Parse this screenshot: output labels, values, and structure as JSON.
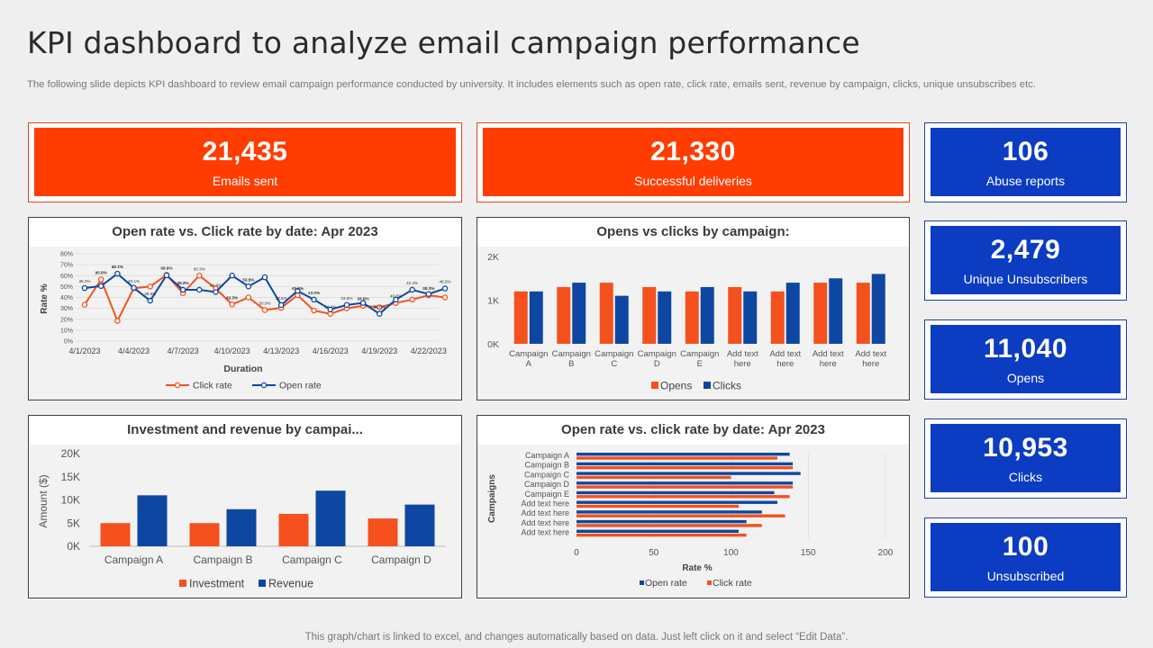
{
  "page": {
    "title": "KPI dashboard to analyze email campaign performance",
    "subtitle": "The following slide depicts KPI dashboard to review email campaign performance conducted by university. It includes elements such as open rate, click rate,  emails sent, revenue by campaign, clicks, unique unsubscribes etc.",
    "footer": "This graph/chart is linked to excel,  and changes automatically based on data. Just left click on it and select “Edit Data”."
  },
  "kpis": {
    "emails_sent": {
      "value": "21,435",
      "label": "Emails sent"
    },
    "successful_deliveries": {
      "value": "21,330",
      "label": "Successful deliveries"
    },
    "abuse_reports": {
      "value": "106",
      "label": "Abuse reports"
    },
    "unique_unsubscribers": {
      "value": "2,479",
      "label": "Unique Unsubscribers"
    },
    "opens": {
      "value": "11,040",
      "label": "Opens"
    },
    "clicks": {
      "value": "10,953",
      "label": "Clicks"
    },
    "unsubscribed": {
      "value": "100",
      "label": "Unsubscribed"
    }
  },
  "colors": {
    "orange": "#ff3d00",
    "blue": "#0b3cc1",
    "red_series": "#f4511e",
    "blue_series": "#0d47a1"
  },
  "chart_data": [
    {
      "type": "line",
      "title": "Open rate vs. Click rate by date: Apr 2023",
      "xlabel": "Duration",
      "ylabel": "Rate %",
      "ylim": [
        0,
        80
      ],
      "yticks": [
        "0%",
        "10%",
        "20%",
        "30%",
        "40%",
        "50%",
        "60%",
        "70%",
        "80%"
      ],
      "x": [
        "4/1/2023",
        "4/2/2023",
        "4/3/2023",
        "4/4/2023",
        "4/5/2023",
        "4/6/2023",
        "4/7/2023",
        "4/8/2023",
        "4/9/2023",
        "4/10/2023",
        "4/11/2023",
        "4/12/2023",
        "4/13/2023",
        "4/14/2023",
        "4/15/2023",
        "4/16/2023",
        "4/17/2023",
        "4/18/2023",
        "4/19/2023",
        "4/20/2023",
        "4/21/2023",
        "4/22/2023",
        "4/23/2023"
      ],
      "xtick_labels": [
        "4/1/2023",
        "4/4/2023",
        "4/7/2023",
        "4/10/2023",
        "4/13/2023",
        "4/16/2023",
        "4/19/2023",
        "4/22/2023"
      ],
      "series": [
        {
          "name": "Click rate",
          "values": [
            33.4,
            56.5,
            18.5,
            48.5,
            50.0,
            60.7,
            44.0,
            60.0,
            48.2,
            33.6,
            40.0,
            28.5,
            30.5,
            42.1,
            28.0,
            25.0,
            30.0,
            32.4,
            31.0,
            35.0,
            38.0,
            42.0,
            40.0
          ]
        },
        {
          "name": "Open rate",
          "values": [
            48.6,
            50.5,
            61.8,
            48.8,
            37.0,
            60.3,
            47.0,
            47.0,
            45.0,
            60.1,
            50.1,
            58.5,
            33.0,
            46.0,
            38.0,
            29.0,
            33.1,
            35.0,
            25.0,
            38.0,
            47.0,
            43.1,
            48.2
          ]
        }
      ],
      "data_labels": [
        "48.6%",
        "60.8%",
        "63.7%",
        "49.1%",
        "44.8%",
        "60.3%",
        "60.7%",
        "44.8%",
        "50.5%",
        "47.7%",
        "60.8%",
        "48.5%",
        "40.1%",
        "60.3%",
        "50.0%",
        "34.4%",
        "40.8%",
        "38.2%",
        "38.6%",
        "44.8%",
        "38.5%",
        "33.6%",
        "42.3%",
        "26.8%",
        "38.2%",
        "41.0%",
        "47.6%",
        "37.6%",
        "38.3%",
        "42.1%",
        "28.2%",
        "32.4%",
        "43.0%",
        "49.0%"
      ],
      "legend": "bottom"
    },
    {
      "type": "bar",
      "title": "Opens vs clicks by campaign:",
      "categories": [
        [
          "Campaign",
          "A"
        ],
        [
          "Campaign",
          "B"
        ],
        [
          "Campaign",
          "C"
        ],
        [
          "Campaign",
          "D"
        ],
        [
          "Campaign",
          "E"
        ],
        [
          "Add text",
          "here"
        ],
        [
          "Add text",
          "here"
        ],
        [
          "Add text",
          "here"
        ],
        [
          "Add text",
          "here"
        ]
      ],
      "yticks": [
        "0K",
        "1K",
        "2K"
      ],
      "ylim": [
        0,
        2000
      ],
      "series": [
        {
          "name": "Opens",
          "values": [
            1200,
            1300,
            1400,
            1300,
            1200,
            1300,
            1200,
            1400,
            1400
          ]
        },
        {
          "name": "Clicks",
          "values": [
            1200,
            1400,
            1100,
            1200,
            1300,
            1200,
            1400,
            1500,
            1600
          ]
        }
      ],
      "legend": "bottom"
    },
    {
      "type": "bar",
      "title": "Investment and revenue by campai...",
      "ylabel": "Amount ($)",
      "categories": [
        "Campaign A",
        "Campaign B",
        "Campaign C",
        "Campaign D"
      ],
      "yticks": [
        "0K",
        "5K",
        "10K",
        "15K",
        "20K"
      ],
      "ylim": [
        0,
        20000
      ],
      "series": [
        {
          "name": "Investment",
          "values": [
            5000,
            5000,
            7000,
            6000
          ]
        },
        {
          "name": "Revenue",
          "values": [
            11000,
            8000,
            12000,
            9000
          ]
        }
      ],
      "legend": "bottom"
    },
    {
      "type": "bar",
      "orientation": "horizontal",
      "title": "Open rate vs. click rate by date: Apr 2023",
      "xlabel": "Rate %",
      "ylabel": "Campaigns",
      "xlim": [
        0,
        200
      ],
      "xticks": [
        "0",
        "50",
        "100",
        "150",
        "200"
      ],
      "categories": [
        "Campaign A",
        "Campaign B",
        "Campaign C",
        "Campaign D",
        "Campaign E",
        "Add text here",
        "Add text here",
        "Add text here",
        "Add text here"
      ],
      "series": [
        {
          "name": "Open rate",
          "values": [
            138,
            140,
            145,
            140,
            128,
            130,
            120,
            110,
            105
          ]
        },
        {
          "name": "Click rate",
          "values": [
            130,
            140,
            100,
            140,
            138,
            105,
            135,
            120,
            110
          ]
        }
      ],
      "legend": "bottom"
    }
  ]
}
